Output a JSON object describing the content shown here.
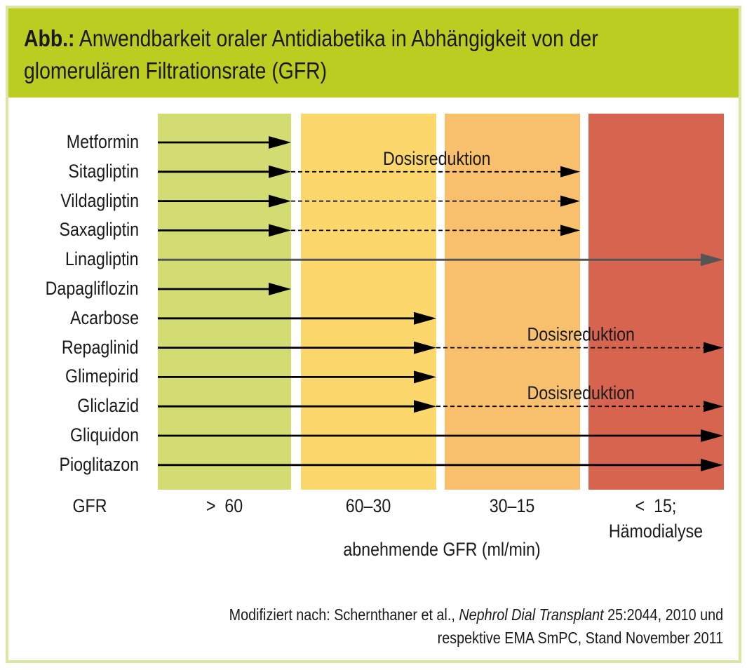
{
  "header": {
    "title_prefix": "Abb.:",
    "title_line1": " Anwendbarkeit oraler Antidiabetika in Abhängigkeit von der",
    "title_line2": "glomerulären Filtrationsrate (GFR)"
  },
  "colors": {
    "header": "#bccd21",
    "zone_gt60": "#d2dc73",
    "zone_60_30": "#fcd86c",
    "zone_30_15": "#f8c06c",
    "zone_lt15": "#d7644e",
    "arrow": "#000000",
    "linagliptin_arrow": "#555555"
  },
  "gfr_label": "GFR",
  "zones": [
    {
      "label": ">  60",
      "label2": ""
    },
    {
      "label": "60–30",
      "label2": ""
    },
    {
      "label": "30–15",
      "label2": ""
    },
    {
      "label": "<  15;",
      "label2": "Hämodialyse"
    }
  ],
  "axis_caption": "abnehmende GFR (ml/min)",
  "dose_reduction_label": "Dosisreduktion",
  "drugs": [
    {
      "name": "Metformin",
      "full_until_zone": 1,
      "reduced_until_zone": null,
      "show_dose_label": false
    },
    {
      "name": "Sitagliptin",
      "full_until_zone": 1,
      "reduced_until_zone": 3,
      "show_dose_label": true
    },
    {
      "name": "Vildagliptin",
      "full_until_zone": 1,
      "reduced_until_zone": 3,
      "show_dose_label": false
    },
    {
      "name": "Saxagliptin",
      "full_until_zone": 1,
      "reduced_until_zone": 3,
      "show_dose_label": false
    },
    {
      "name": "Linagliptin",
      "full_until_zone": 4,
      "reduced_until_zone": null,
      "show_dose_label": false,
      "grey": true
    },
    {
      "name": "Dapagliflozin",
      "full_until_zone": 1,
      "reduced_until_zone": null,
      "show_dose_label": false
    },
    {
      "name": "Acarbose",
      "full_until_zone": 2,
      "reduced_until_zone": null,
      "show_dose_label": false
    },
    {
      "name": "Repaglinid",
      "full_until_zone": 2,
      "reduced_until_zone": 4,
      "show_dose_label": true
    },
    {
      "name": "Glimepirid",
      "full_until_zone": 2,
      "reduced_until_zone": null,
      "show_dose_label": false
    },
    {
      "name": "Gliclazid",
      "full_until_zone": 2,
      "reduced_until_zone": 4,
      "show_dose_label": true
    },
    {
      "name": "Gliquidon",
      "full_until_zone": 4,
      "reduced_until_zone": null,
      "show_dose_label": false
    },
    {
      "name": "Pioglitazon",
      "full_until_zone": 4,
      "reduced_until_zone": null,
      "show_dose_label": false
    }
  ],
  "source": {
    "line1_a": "Modifiziert nach: Schernthaner et al., ",
    "line1_journal": "Nephrol Dial Transplant",
    "line1_b": " 25:2044, 2010 und",
    "line2": "respektive EMA SmPC, Stand November 2011"
  }
}
